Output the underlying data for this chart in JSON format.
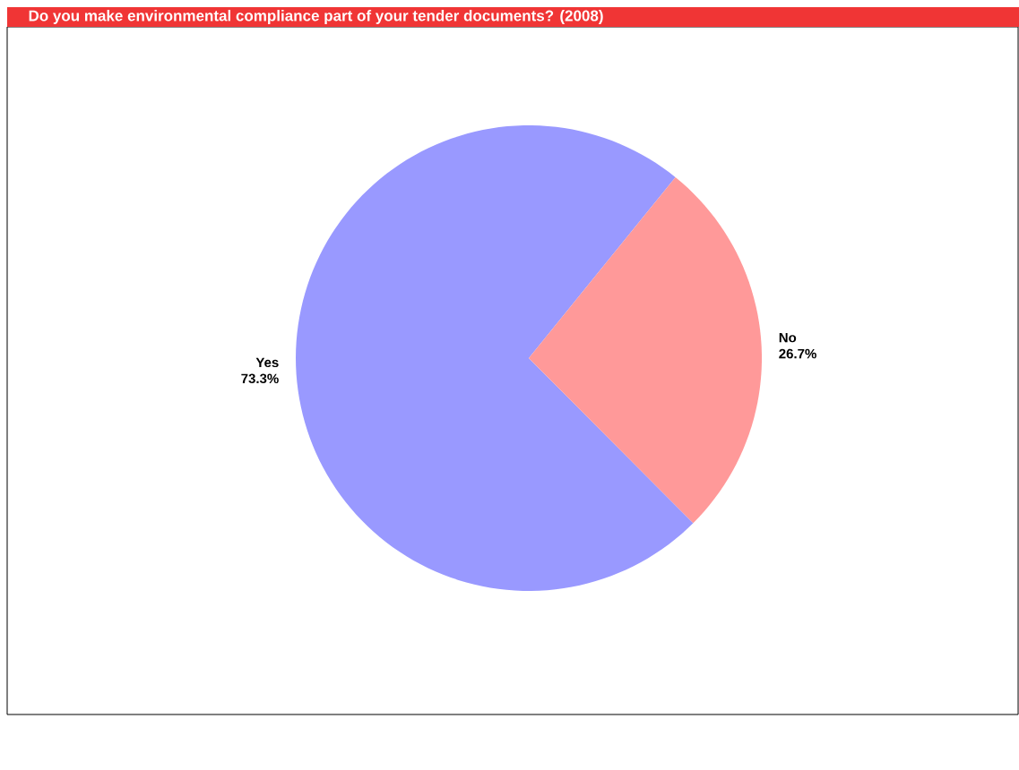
{
  "chart_data": {
    "type": "pie",
    "title": "Do you make environmental compliance part of your tender documents? (2008)",
    "categories": [
      "Yes",
      "No"
    ],
    "values": [
      73.3,
      26.7
    ],
    "colors": [
      "#9999ff",
      "#ff9999"
    ],
    "value_labels": [
      "73.3%",
      "26.7%"
    ]
  }
}
